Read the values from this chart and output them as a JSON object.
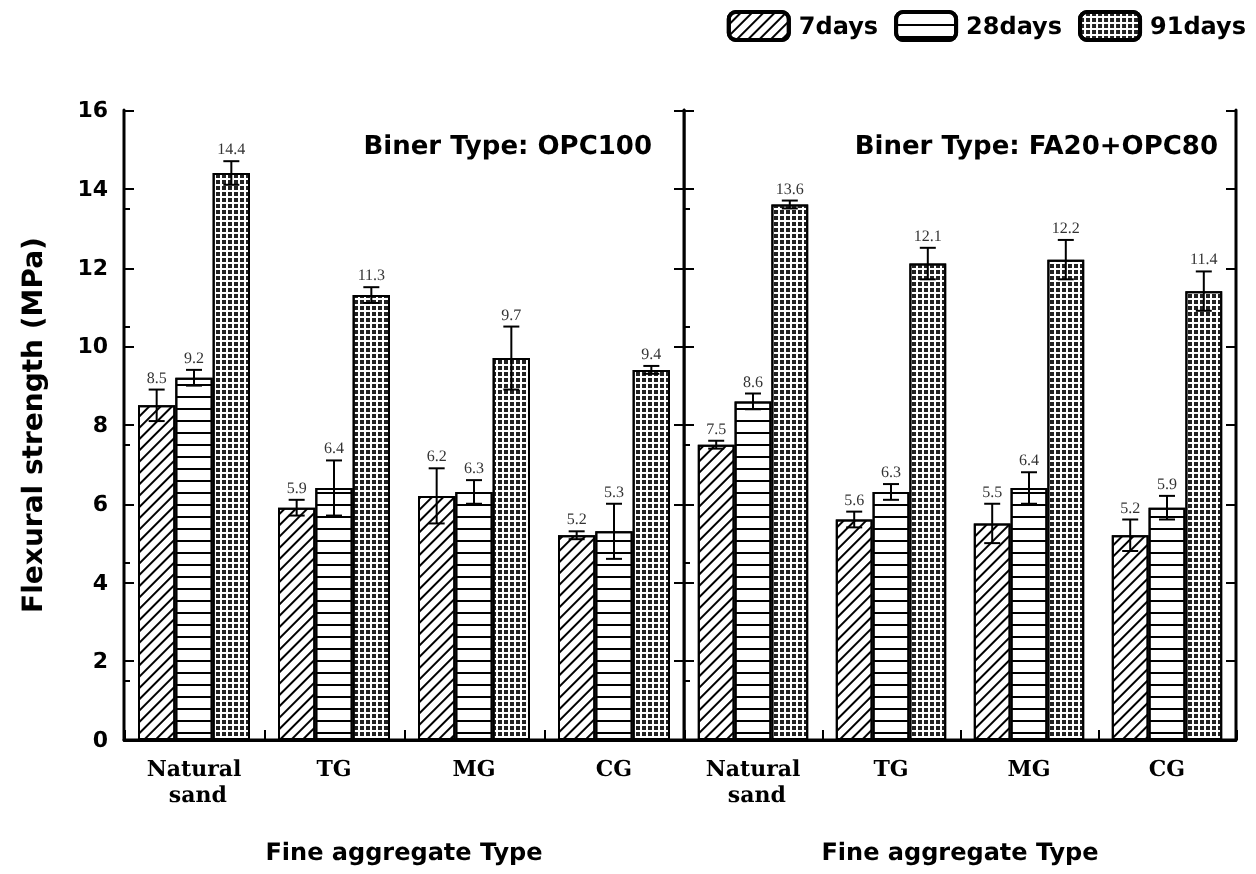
{
  "chart_data": [
    {
      "type": "bar",
      "title": "Biner Type: OPC100",
      "xlabel": "Fine aggregate Type",
      "ylabel": "Flexural strength (MPa)",
      "categories": [
        "Natural sand",
        "TG",
        "MG",
        "CG"
      ],
      "series": [
        {
          "color": "#ffffff",
          "values": [
            8.5,
            5.9,
            6.2,
            5.2
          ],
          "errors": [
            0.4,
            0.2,
            0.7,
            0.1
          ]
        },
        {
          "color": "#ffffff",
          "values": [
            9.2,
            6.4,
            6.3,
            5.3
          ],
          "errors": [
            0.2,
            0.7,
            0.3,
            0.7
          ]
        },
        {
          "color": "#ffffff",
          "values": [
            14.4,
            11.3,
            9.7,
            9.4
          ],
          "errors": [
            0.3,
            0.2,
            0.8,
            0.1
          ]
        }
      ],
      "ylim": [
        0,
        16
      ],
      "yticks": [
        0,
        2,
        4,
        6,
        8,
        10,
        12,
        14,
        16
      ],
      "data_labels": true,
      "legend": false
    },
    {
      "type": "bar",
      "title": "Biner Type: FA20+OPC80",
      "xlabel": "Fine aggregate Type",
      "categories": [
        "Natural sand",
        "TG",
        "MG",
        "CG"
      ],
      "series": [
        {
          "name": "7days",
          "color": "#ffffff",
          "values": [
            7.5,
            5.6,
            5.5,
            5.2
          ],
          "errors": [
            0.1,
            0.2,
            0.5,
            0.4
          ]
        },
        {
          "name": "28days",
          "color": "#ffffff",
          "values": [
            8.6,
            6.3,
            6.4,
            5.9
          ],
          "errors": [
            0.2,
            0.2,
            0.4,
            0.3
          ]
        },
        {
          "name": "91days",
          "color": "#ffffff",
          "values": [
            13.6,
            12.1,
            12.2,
            11.4
          ],
          "errors": [
            0.1,
            0.4,
            0.5,
            0.5
          ]
        }
      ],
      "ylim": [
        0,
        16
      ],
      "yticks": [
        0,
        2,
        4,
        6,
        8,
        10,
        12,
        14,
        16
      ],
      "data_labels": true,
      "legend": "top right",
      "tick_labels": "x"
    }
  ]
}
